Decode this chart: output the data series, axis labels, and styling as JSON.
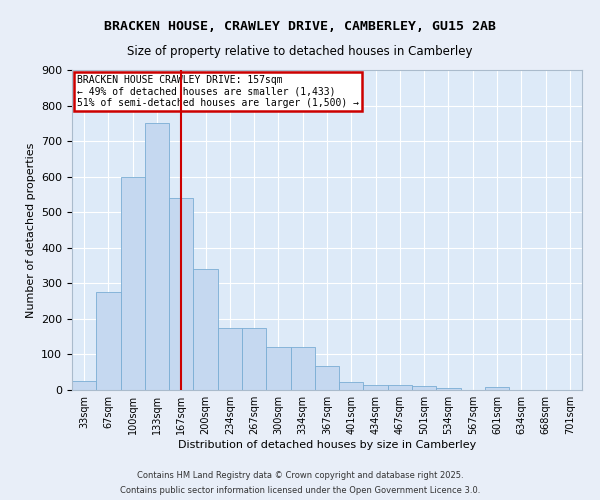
{
  "title1": "BRACKEN HOUSE, CRAWLEY DRIVE, CAMBERLEY, GU15 2AB",
  "title2": "Size of property relative to detached houses in Camberley",
  "xlabel": "Distribution of detached houses by size in Camberley",
  "ylabel": "Number of detached properties",
  "bar_values": [
    25,
    275,
    600,
    750,
    540,
    340,
    175,
    175,
    120,
    120,
    67,
    22,
    13,
    13,
    10,
    5,
    0,
    8,
    0,
    0,
    0
  ],
  "categories": [
    "33sqm",
    "67sqm",
    "100sqm",
    "133sqm",
    "167sqm",
    "200sqm",
    "234sqm",
    "267sqm",
    "300sqm",
    "334sqm",
    "367sqm",
    "401sqm",
    "434sqm",
    "467sqm",
    "501sqm",
    "534sqm",
    "567sqm",
    "601sqm",
    "634sqm",
    "668sqm",
    "701sqm"
  ],
  "bar_color": "#c5d8f0",
  "bar_edge_color": "#7aadd4",
  "bg_color": "#ddeaf8",
  "grid_color": "#ffffff",
  "vline_color": "#cc0000",
  "vline_pos": 4.5,
  "annotation_line1": "BRACKEN HOUSE CRAWLEY DRIVE: 157sqm",
  "annotation_line2": "← 49% of detached houses are smaller (1,433)",
  "annotation_line3": "51% of semi-detached houses are larger (1,500) →",
  "annotation_box_color": "#cc0000",
  "annotation_bg": "#ffffff",
  "ylim": [
    0,
    900
  ],
  "yticks": [
    0,
    100,
    200,
    300,
    400,
    500,
    600,
    700,
    800,
    900
  ],
  "footnote1": "Contains HM Land Registry data © Crown copyright and database right 2025.",
  "footnote2": "Contains public sector information licensed under the Open Government Licence 3.0."
}
